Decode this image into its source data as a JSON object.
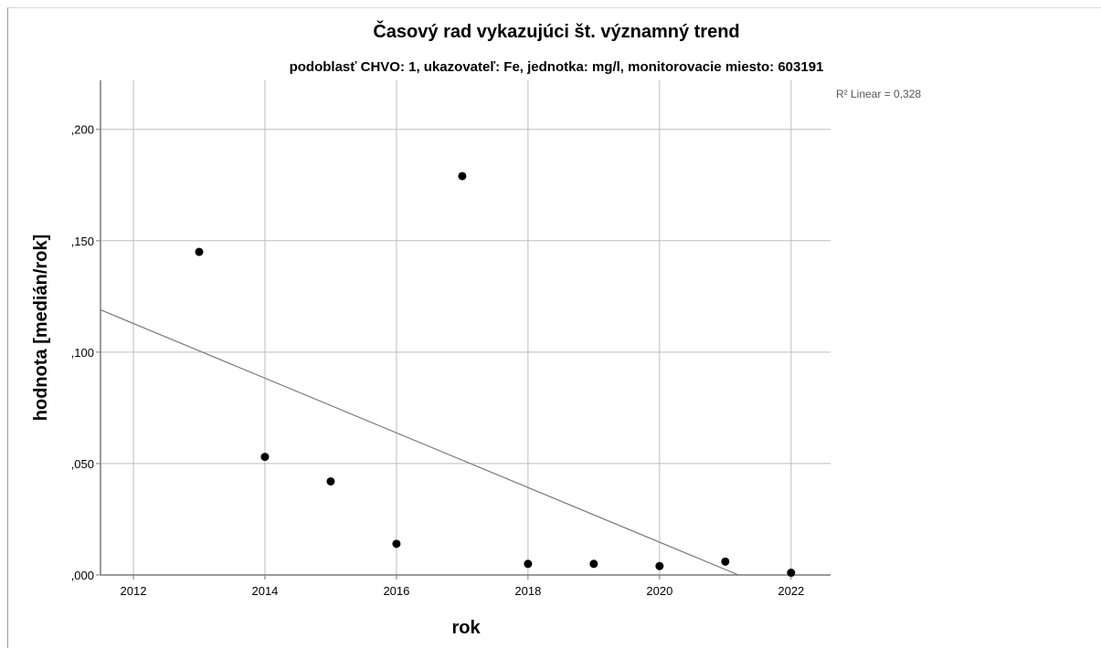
{
  "chart_data": {
    "type": "scatter",
    "title": "Časový rad vykazujúci št. významný trend",
    "subtitle": "podoblasť CHVO: 1, ukazovateľ: Fe, jednotka: mg/l, monitorovacie miesto: 603191",
    "xlabel": "rok",
    "ylabel": "hodnota [medián/rok]",
    "xlim": [
      2011.5,
      2022.6
    ],
    "ylim": [
      0,
      0.222
    ],
    "xticks": [
      2012,
      2014,
      2016,
      2018,
      2020,
      2022
    ],
    "xtick_labels": [
      "2012",
      "2014",
      "2016",
      "2018",
      "2020",
      "2022"
    ],
    "yticks": [
      0,
      0.05,
      0.1,
      0.15,
      0.2
    ],
    "ytick_labels": [
      ",000",
      ",050",
      ",100",
      ",150",
      ",200"
    ],
    "grid": true,
    "points": [
      {
        "x": 2013,
        "y": 0.145
      },
      {
        "x": 2014,
        "y": 0.053
      },
      {
        "x": 2015,
        "y": 0.042
      },
      {
        "x": 2016,
        "y": 0.014
      },
      {
        "x": 2017,
        "y": 0.179
      },
      {
        "x": 2018,
        "y": 0.005
      },
      {
        "x": 2019,
        "y": 0.005
      },
      {
        "x": 2020,
        "y": 0.004
      },
      {
        "x": 2021,
        "y": 0.006
      },
      {
        "x": 2022,
        "y": 0.001
      }
    ],
    "fit_line": {
      "label": "R² Linear = 0,328",
      "start": {
        "x": 2011.5,
        "y": 0.119
      },
      "end": {
        "x": 2021.2,
        "y": 0.0
      }
    },
    "colors": {
      "points": "#000000",
      "grid": "#bdbdbd",
      "fit_line": "#7a7a7a",
      "axis": "#7a7a7a"
    }
  }
}
